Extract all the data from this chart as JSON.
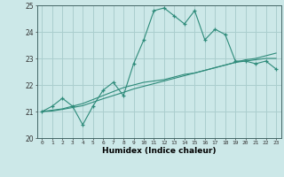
{
  "xlabel": "Humidex (Indice chaleur)",
  "ylabel": "",
  "x_values": [
    0,
    1,
    2,
    3,
    4,
    5,
    6,
    7,
    8,
    9,
    10,
    11,
    12,
    13,
    14,
    15,
    16,
    17,
    18,
    19,
    20,
    21,
    22,
    23
  ],
  "main_line": [
    21.0,
    21.2,
    21.5,
    21.2,
    20.5,
    21.2,
    21.8,
    22.1,
    21.6,
    22.8,
    23.7,
    24.8,
    24.9,
    24.6,
    24.3,
    24.8,
    23.7,
    24.1,
    23.9,
    22.9,
    22.9,
    22.8,
    22.9,
    22.6
  ],
  "trend_line1": [
    21.0,
    21.05,
    21.1,
    21.2,
    21.3,
    21.45,
    21.6,
    21.75,
    21.9,
    22.0,
    22.1,
    22.15,
    22.2,
    22.3,
    22.4,
    22.45,
    22.55,
    22.65,
    22.75,
    22.85,
    22.9,
    22.95,
    23.0,
    23.0
  ],
  "trend_line2": [
    21.0,
    21.02,
    21.08,
    21.15,
    21.22,
    21.35,
    21.48,
    21.6,
    21.72,
    21.85,
    21.95,
    22.05,
    22.15,
    22.25,
    22.35,
    22.45,
    22.55,
    22.65,
    22.75,
    22.85,
    22.95,
    23.0,
    23.1,
    23.2
  ],
  "line_color": "#2e8b7a",
  "bg_color": "#cce8e8",
  "grid_color": "#aacece",
  "ylim": [
    20,
    25
  ],
  "yticks": [
    20,
    21,
    22,
    23,
    24,
    25
  ],
  "xlim": [
    -0.5,
    23.5
  ],
  "marker": "+"
}
